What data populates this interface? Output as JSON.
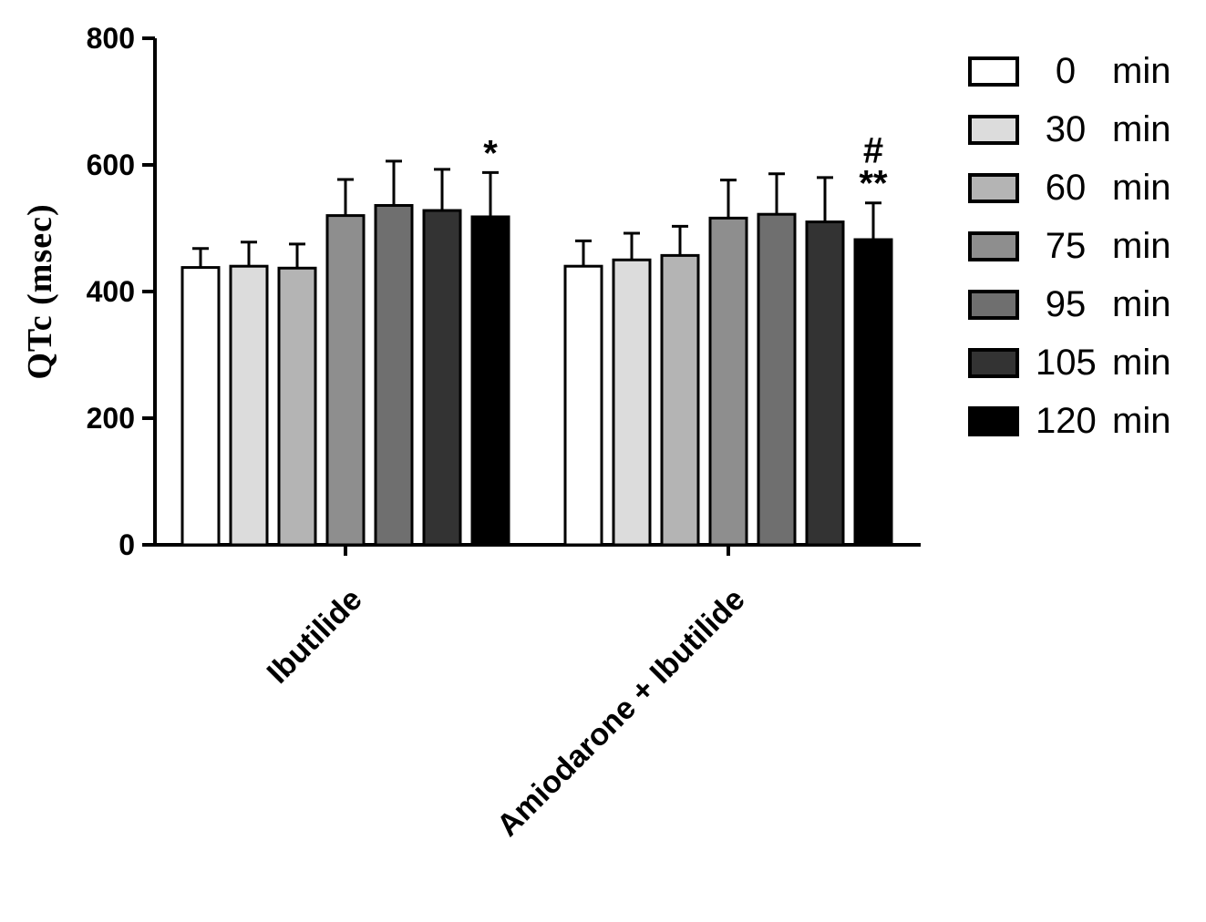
{
  "figure": {
    "background": "#ffffff",
    "axis_color": "#000000"
  },
  "chart_data": {
    "type": "bar",
    "title": "",
    "xlabel": "",
    "ylabel": "QTc (msec)",
    "ylim": [
      0,
      800
    ],
    "yticks": [
      0,
      200,
      400,
      600,
      800
    ],
    "grid": false,
    "legend_position": "right-outside",
    "error_bars": "upper",
    "categories": [
      "Ibutilide",
      "Amiodarone + Ibutilide"
    ],
    "series": [
      {
        "name": "0 min",
        "color": "#ffffff",
        "values": [
          438,
          440
        ],
        "errors": [
          30,
          40
        ]
      },
      {
        "name": "30 min",
        "color": "#dcdcdc",
        "values": [
          440,
          450
        ],
        "errors": [
          38,
          42
        ]
      },
      {
        "name": "60 min",
        "color": "#b4b4b4",
        "values": [
          437,
          457
        ],
        "errors": [
          38,
          46
        ]
      },
      {
        "name": "75 min",
        "color": "#8e8e8e",
        "values": [
          520,
          516
        ],
        "errors": [
          57,
          60
        ]
      },
      {
        "name": "95 min",
        "color": "#6f6f6f",
        "values": [
          536,
          522
        ],
        "errors": [
          70,
          64
        ]
      },
      {
        "name": "105 min",
        "color": "#333333",
        "values": [
          528,
          510
        ],
        "errors": [
          65,
          70
        ]
      },
      {
        "name": "120 min",
        "color": "#000000",
        "values": [
          518,
          482
        ],
        "errors": [
          70,
          58
        ]
      }
    ],
    "annotations": [
      {
        "category_index": 0,
        "series_index": 6,
        "lines": [
          "*"
        ]
      },
      {
        "category_index": 1,
        "series_index": 6,
        "lines": [
          "#",
          "**"
        ]
      }
    ]
  }
}
